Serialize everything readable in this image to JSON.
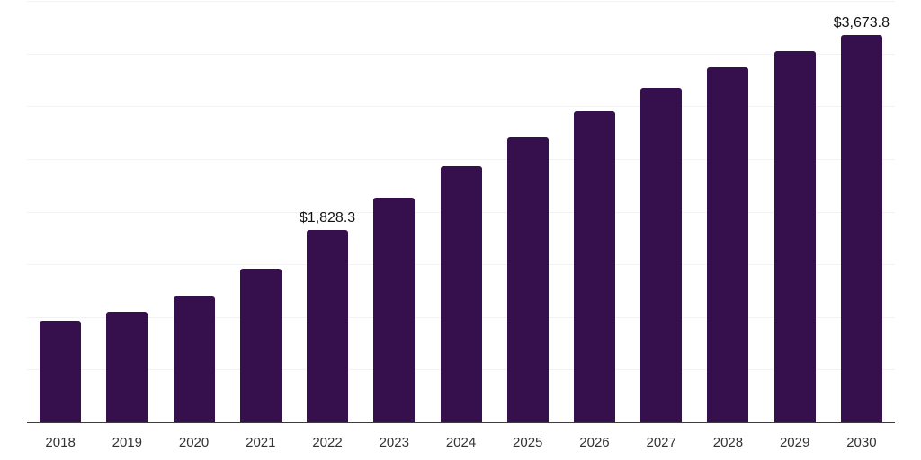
{
  "chart_data": {
    "type": "bar",
    "title": "",
    "xlabel": "",
    "ylabel": "",
    "categories": [
      "2018",
      "2019",
      "2020",
      "2021",
      "2022",
      "2023",
      "2024",
      "2025",
      "2026",
      "2027",
      "2028",
      "2029",
      "2030"
    ],
    "values": [
      960,
      1045,
      1190,
      1455,
      1828.3,
      2130,
      2430,
      2705,
      2955,
      3170,
      3365,
      3520,
      3673.8
    ],
    "data_labels": [
      "",
      "",
      "",
      "",
      "$1,828.3",
      "",
      "",
      "",
      "",
      "",
      "",
      "",
      "$3,673.8"
    ],
    "ylim": [
      0,
      4000
    ],
    "grid_step": 500,
    "grid": "horizontal-only",
    "legend": "none",
    "colors": {
      "bar": "#36104D",
      "gridline": "#f2f2f2",
      "axis_line": "#3d3d3d",
      "tick_label": "#333333",
      "data_label": "#111111",
      "background": "#ffffff"
    }
  }
}
